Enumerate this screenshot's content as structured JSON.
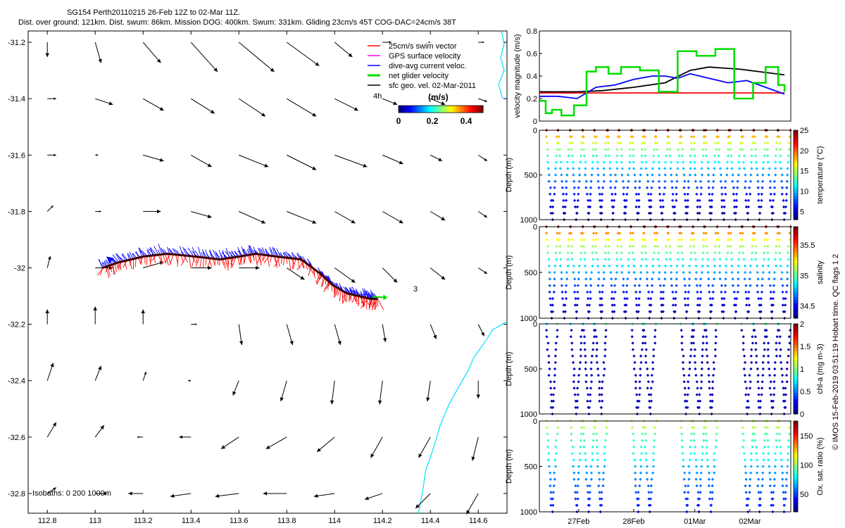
{
  "title": {
    "line1": "SG154 Perth20110215 26-Feb 12Z to 02-Mar 11Z.",
    "line2": "Dist. over ground: 121km. Dist. swum: 86km. Mission DOG: 400km. Swum: 331km. Gliding 23cm/s 45T COG-DAC=24cm/s 38T"
  },
  "side_label": "© IMOS 15-Feb-2019 03:51:19 Hobart time. QC flags 1  2",
  "colors": {
    "swim": "#ff0000",
    "gps": "#ff00ff",
    "dac": "#0000ff",
    "net": "#00dd00",
    "sfc": "#000000",
    "coast": "#00e0ff",
    "frame": "#000000"
  },
  "map": {
    "legend": [
      {
        "label": "25cm/s swim vector",
        "color": "#ff0000"
      },
      {
        "label": "GPS surface velocity",
        "color": "#ff00ff"
      },
      {
        "label": "dive-avg current veloc.",
        "color": "#0000ff"
      },
      {
        "label": "net glider velocity",
        "color": "#00dd00"
      },
      {
        "label": "sfc geo. vel. 02-Mar-2011",
        "color": "#000000"
      }
    ],
    "annotation_4h": "4h",
    "annotation_3": "3",
    "isobaths_label": "Isobaths: 0  200  1000m",
    "colorbar": {
      "title": "(m/s)",
      "ticks": [
        "0",
        "0.2",
        "0.4"
      ],
      "range": [
        0,
        0.5
      ]
    }
  },
  "chart_data": [
    {
      "type": "scatter",
      "name": "map",
      "x_ticks": [
        "112.8",
        "113",
        "113.2",
        "113.4",
        "113.6",
        "113.8",
        "114",
        "114.2",
        "114.4",
        "114.6"
      ],
      "y_ticks": [
        "-31.2",
        "-31.4",
        "-31.6",
        "-31.8",
        "-32",
        "-32.2",
        "-32.4",
        "-32.6",
        "-32.8"
      ],
      "xlim": [
        112.72,
        114.72
      ],
      "ylim": [
        -32.87,
        -31.16
      ],
      "track": {
        "lon": [
          113.03,
          113.1,
          113.2,
          113.3,
          113.42,
          113.52,
          113.6,
          113.67,
          113.76,
          113.86,
          113.94,
          113.99,
          114.05,
          114.1,
          114.15,
          114.18
        ],
        "lat": [
          -32.0,
          -31.98,
          -31.96,
          -31.95,
          -31.96,
          -31.97,
          -31.96,
          -31.95,
          -31.96,
          -31.97,
          -32.02,
          -32.06,
          -32.09,
          -32.1,
          -32.11,
          -32.11
        ]
      },
      "vectors": {
        "lon": [
          112.8,
          113.0,
          113.2,
          113.4,
          113.6,
          113.8,
          114.0,
          114.2,
          114.4,
          114.6
        ],
        "lat": [
          -31.2,
          -31.4,
          -31.6,
          -31.8,
          -32.0,
          -32.2,
          -32.4,
          -32.6,
          -32.8
        ],
        "u": [
          [
            0.0,
            0.02,
            0.06,
            0.09,
            0.12,
            0.11,
            0.06,
            0.03,
            0.0,
            0.02
          ],
          [
            0.03,
            0.06,
            0.07,
            0.08,
            0.09,
            0.1,
            0.08,
            0.05,
            0.05,
            0.03
          ],
          [
            0.03,
            0.01,
            0.07,
            0.07,
            0.1,
            0.1,
            0.11,
            0.07,
            0.04,
            0.03
          ],
          [
            0.02,
            0.02,
            0.06,
            0.07,
            0.09,
            0.1,
            0.07,
            0.07,
            0.05,
            0.03
          ],
          [
            0.01,
            0.06,
            0.07,
            0.07,
            0.07,
            0.06,
            0.07,
            0.05,
            0.05,
            0.03
          ],
          [
            0.0,
            0.0,
            0.0,
            0.02,
            0.01,
            0.02,
            0.02,
            0.01,
            0.02,
            0.02
          ],
          [
            0.02,
            0.02,
            0.01,
            -0.01,
            -0.02,
            -0.02,
            -0.01,
            -0.01,
            -0.01,
            0.0
          ],
          [
            0.03,
            0.03,
            -0.02,
            -0.04,
            -0.06,
            -0.07,
            -0.06,
            -0.04,
            -0.04,
            -0.02
          ],
          [
            0.03,
            0.04,
            -0.05,
            -0.07,
            -0.08,
            -0.08,
            -0.07,
            -0.06,
            -0.05,
            -0.04
          ]
        ],
        "v": [
          [
            -0.05,
            -0.07,
            -0.07,
            -0.1,
            -0.1,
            -0.08,
            -0.05,
            0.0,
            0.0,
            0.0
          ],
          [
            0.0,
            -0.02,
            -0.04,
            -0.05,
            -0.06,
            -0.06,
            -0.04,
            -0.02,
            -0.02,
            -0.01
          ],
          [
            0.0,
            0.0,
            -0.02,
            -0.04,
            -0.04,
            -0.05,
            -0.04,
            -0.03,
            -0.02,
            -0.02
          ],
          [
            0.02,
            0.0,
            0.0,
            -0.02,
            -0.04,
            -0.04,
            -0.04,
            -0.04,
            -0.03,
            -0.02
          ],
          [
            0.04,
            0.0,
            0.02,
            0.0,
            0.0,
            -0.04,
            -0.05,
            -0.05,
            -0.04,
            -0.02
          ],
          [
            0.05,
            0.06,
            0.05,
            0.0,
            -0.07,
            -0.07,
            -0.07,
            -0.06,
            -0.05,
            -0.04
          ],
          [
            0.06,
            0.05,
            0.03,
            0.0,
            -0.05,
            -0.07,
            -0.08,
            -0.08,
            -0.07,
            -0.06
          ],
          [
            0.05,
            0.04,
            0.0,
            0.0,
            -0.04,
            -0.04,
            -0.05,
            -0.07,
            -0.07,
            -0.08
          ],
          [
            0.02,
            0.0,
            0.0,
            -0.01,
            -0.01,
            0.0,
            -0.01,
            -0.02,
            -0.05,
            -0.07
          ]
        ]
      },
      "coastline": {
        "lon": [
          114.72,
          114.7,
          114.66,
          114.63,
          114.58,
          114.56,
          114.52,
          114.5,
          114.48,
          114.46,
          114.44,
          114.42,
          114.4,
          114.38,
          114.37,
          114.35
        ],
        "lat": [
          -32.19,
          -32.2,
          -32.22,
          -32.26,
          -32.32,
          -32.36,
          -32.42,
          -32.45,
          -32.48,
          -32.52,
          -32.56,
          -32.62,
          -32.67,
          -32.72,
          -32.78,
          -32.87
        ]
      }
    },
    {
      "type": "line",
      "name": "velocity",
      "ylabel": "velocity magnitude (m/s)",
      "xlim": [
        0,
        4.0
      ],
      "ylim": [
        0,
        0.8
      ],
      "y_ticks": [
        "0",
        "0.2",
        "0.4",
        "0.6",
        "0.8"
      ],
      "series": [
        {
          "color": "#ff0000",
          "x": [
            0.0,
            3.9
          ],
          "y": [
            0.25,
            0.25
          ]
        },
        {
          "color": "#000000",
          "x": [
            0.0,
            0.6,
            1.0,
            1.5,
            2.0,
            2.4,
            2.7,
            3.2,
            3.9
          ],
          "y": [
            0.26,
            0.26,
            0.27,
            0.3,
            0.34,
            0.45,
            0.48,
            0.46,
            0.41
          ]
        },
        {
          "color": "#0000ff",
          "x": [
            0.0,
            0.3,
            0.6,
            0.9,
            1.2,
            1.5,
            1.8,
            2.0,
            2.2,
            2.4,
            2.7,
            3.0,
            3.3,
            3.6,
            3.9
          ],
          "y": [
            0.22,
            0.22,
            0.2,
            0.3,
            0.32,
            0.37,
            0.4,
            0.4,
            0.38,
            0.42,
            0.38,
            0.34,
            0.36,
            0.3,
            0.24
          ]
        },
        {
          "color": "#00dd00",
          "x": [
            0.0,
            0.1,
            0.2,
            0.35,
            0.55,
            0.75,
            0.9,
            1.1,
            1.3,
            1.6,
            1.9,
            2.2,
            2.5,
            2.8,
            3.1,
            3.4,
            3.6,
            3.8,
            3.9
          ],
          "y": [
            0.18,
            0.07,
            0.1,
            0.05,
            0.14,
            0.44,
            0.48,
            0.42,
            0.48,
            0.45,
            0.26,
            0.62,
            0.58,
            0.64,
            0.2,
            0.34,
            0.48,
            0.32,
            0.26
          ]
        }
      ]
    },
    {
      "type": "scatter",
      "name": "temperature",
      "ylabel": "Depth (m)",
      "colorbar_label": "temperature (°C)",
      "ylim": [
        0,
        1000
      ],
      "y_ticks": [
        "0",
        "500",
        "1000"
      ],
      "colorbar_ticks": [
        "5",
        "10",
        "15",
        "20",
        "25"
      ],
      "crange": [
        3,
        25
      ],
      "profiles": [
        {
          "tmax": 0.01,
          "zmin": 1000
        },
        {
          "tmax": 0.2,
          "zmin": 1000
        },
        {
          "tmax": 0.4,
          "zmin": 1000
        },
        {
          "tmax": 0.6,
          "zmin": 1000
        },
        {
          "tmax": 0.8,
          "zmin": 1000
        },
        {
          "tmax": 1.0,
          "zmin": 1000
        },
        {
          "tmax": 1.2,
          "zmin": 1000
        },
        {
          "tmax": 1.4,
          "zmin": 1000
        },
        {
          "tmax": 1.6,
          "zmin": 1000
        },
        {
          "tmax": 1.8,
          "zmin": 1000
        },
        {
          "tmax": 2.0,
          "zmin": 1000
        },
        {
          "tmax": 2.2,
          "zmin": 1000
        },
        {
          "tmax": 2.4,
          "zmin": 1000
        },
        {
          "tmax": 2.6,
          "zmin": 1000
        },
        {
          "tmax": 2.8,
          "zmin": 1000
        },
        {
          "tmax": 3.0,
          "zmin": 1000
        },
        {
          "tmax": 3.2,
          "zmin": 1000
        },
        {
          "tmax": 3.4,
          "zmin": 1000
        },
        {
          "tmax": 3.6,
          "zmin": 1000
        },
        {
          "tmax": 3.8,
          "zmin": 1000
        }
      ]
    },
    {
      "type": "scatter",
      "name": "salinity",
      "ylabel": "Depth (m)",
      "colorbar_label": "salinity",
      "ylim": [
        0,
        1000
      ],
      "y_ticks": [
        "0",
        "500",
        "1000"
      ],
      "colorbar_ticks": [
        "34.5",
        "35",
        "35.5"
      ],
      "crange": [
        34.3,
        35.8
      ]
    },
    {
      "type": "scatter",
      "name": "chlorophyll",
      "ylabel": "Depth (m)",
      "colorbar_label": "chl-a (mg m-3)",
      "ylim": [
        0,
        1000
      ],
      "y_ticks": [
        "0",
        "500",
        "1000"
      ],
      "colorbar_ticks": [
        "0",
        "0.5",
        "1",
        "1.5",
        "2"
      ],
      "crange": [
        0,
        2
      ]
    },
    {
      "type": "scatter",
      "name": "oxygen",
      "ylabel": "Depth (m)",
      "colorbar_label": "Ox. sat. ratio (%)",
      "ylim": [
        0,
        1000
      ],
      "y_ticks": [
        "0",
        "500",
        "1000"
      ],
      "colorbar_ticks": [
        "50",
        "100",
        "150"
      ],
      "crange": [
        20,
        175
      ],
      "x_ticks": [
        "27Feb",
        "28Feb",
        "01Mar",
        "02Mar"
      ],
      "x_tick_days": [
        0.55,
        1.45,
        2.45,
        3.35
      ]
    }
  ]
}
